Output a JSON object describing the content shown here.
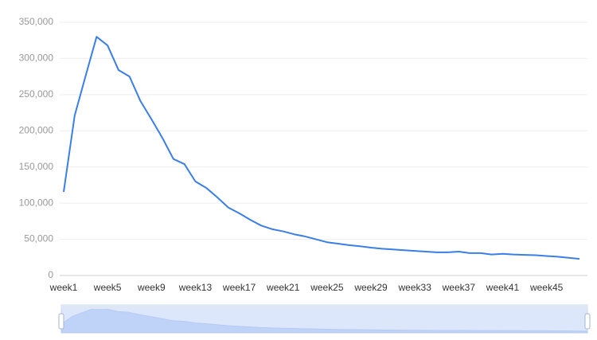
{
  "chart_data": {
    "type": "line",
    "categories": [
      "week1",
      null,
      null,
      null,
      "week5",
      null,
      null,
      null,
      "week9",
      null,
      null,
      null,
      "week13",
      null,
      null,
      null,
      "week17",
      null,
      null,
      null,
      "week21",
      null,
      null,
      null,
      "week25",
      null,
      null,
      null,
      "week29",
      null,
      null,
      null,
      "week33",
      null,
      null,
      null,
      "week37",
      null,
      null,
      null,
      "week41",
      null,
      null,
      null,
      "week45",
      null,
      null,
      null
    ],
    "series": [
      {
        "color": "#3a7ee8",
        "values": [
          115600,
          221000,
          276000,
          330000,
          318000,
          284000,
          275000,
          241000,
          216000,
          190000,
          161000,
          154000,
          130000,
          121000,
          108000,
          94000,
          86000,
          77000,
          69000,
          64000,
          61000,
          57000,
          54000,
          50000,
          46000,
          44000,
          42000,
          40500,
          38500,
          37000,
          36000,
          35000,
          34000,
          33000,
          32000,
          32000,
          33000,
          31000,
          31000,
          29000,
          30000,
          29000,
          28500,
          28000,
          27000,
          26000,
          24500,
          23000
        ]
      }
    ],
    "ylim": [
      0,
      350000
    ],
    "yticks": [
      0,
      {
        "value": 50000,
        "label": "50,000"
      },
      {
        "value": 100000,
        "label": "100,000"
      },
      {
        "value": 150000,
        "label": "150,000"
      },
      {
        "value": 200000,
        "label": "200,000"
      },
      {
        "value": 250000,
        "label": "250,000"
      },
      {
        "value": 300000,
        "label": "300,000"
      },
      {
        "value": 350000,
        "label": "350,000"
      }
    ],
    "grid": true,
    "data_zoom": true
  }
}
